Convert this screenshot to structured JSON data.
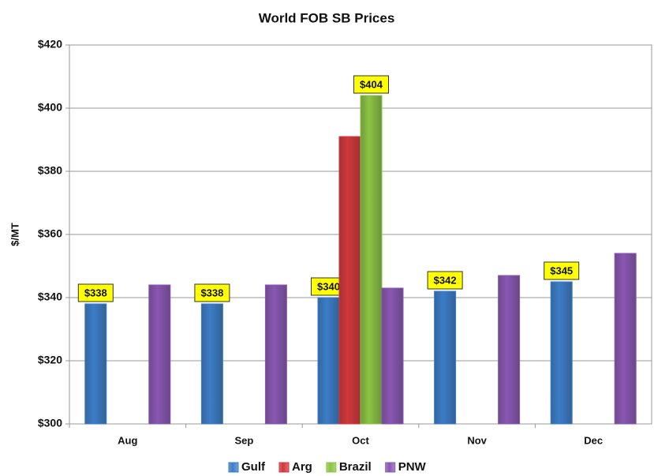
{
  "chart_data": {
    "type": "bar",
    "title": "World FOB SB Prices",
    "y_label": "$/MT",
    "categories": [
      "Aug",
      "Sep",
      "Oct",
      "Nov",
      "Dec"
    ],
    "series": [
      {
        "name": "Gulf",
        "color": "#3b7dc8",
        "values": [
          338,
          338,
          340,
          342,
          345
        ],
        "value_labels": [
          "$338",
          "$338",
          "$340",
          "$342",
          "$345"
        ]
      },
      {
        "name": "Arg",
        "color": "#d2373a",
        "values": [
          null,
          null,
          391,
          null,
          null
        ]
      },
      {
        "name": "Brazil",
        "color": "#8cc443",
        "values": [
          null,
          null,
          404,
          null,
          null
        ],
        "value_labels": [
          null,
          null,
          "$404",
          null,
          null
        ]
      },
      {
        "name": "PNW",
        "color": "#8957b3",
        "values": [
          344,
          344,
          343,
          347,
          354
        ]
      }
    ],
    "ylim": [
      300,
      420
    ],
    "yticks": [
      {
        "value": 300,
        "label": "$300"
      },
      {
        "value": 320,
        "label": "$320"
      },
      {
        "value": 340,
        "label": "$340"
      },
      {
        "value": 360,
        "label": "$360"
      },
      {
        "value": 380,
        "label": "$380"
      },
      {
        "value": 400,
        "label": "$400"
      },
      {
        "value": 420,
        "label": "$420"
      }
    ],
    "grid": true,
    "legend": "bottom"
  }
}
